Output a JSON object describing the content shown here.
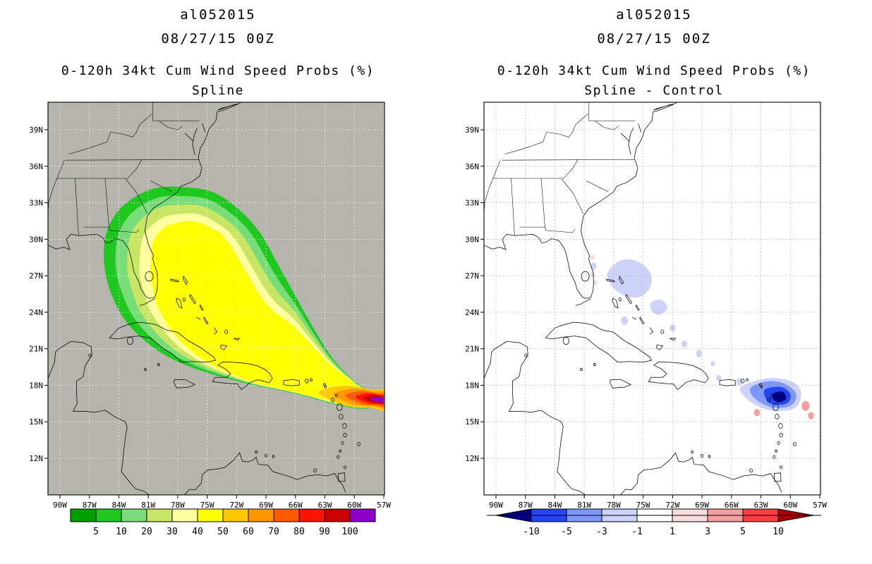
{
  "axes": {
    "lat_labels": [
      "39N",
      "36N",
      "33N",
      "30N",
      "27N",
      "24N",
      "21N",
      "18N",
      "15N",
      "12N"
    ],
    "lon_labels": [
      "90W",
      "87W",
      "84W",
      "81W",
      "78W",
      "75W",
      "72W",
      "69W",
      "66W",
      "63W",
      "60W",
      "57W"
    ]
  },
  "panels": [
    {
      "storm_id": "al052015",
      "init_time": "08/27/15 00Z",
      "title": "0-120h 34kt Cum Wind Speed Probs (%)",
      "subtitle": "Spline",
      "map_background": "#b5b5ad",
      "grid_color": "#ffffff",
      "coastline_color": "#000000",
      "colorbar": {
        "labels": [
          "5",
          "10",
          "20",
          "30",
          "40",
          "50",
          "60",
          "70",
          "80",
          "90",
          "100"
        ],
        "colors": [
          "#00a000",
          "#1ec81e",
          "#78dc78",
          "#c8e664",
          "#ffffa0",
          "#ffff00",
          "#ffc800",
          "#ff9600",
          "#ff5a00",
          "#ff1400",
          "#c80000",
          "#8c00c8"
        ]
      }
    },
    {
      "storm_id": "al052015",
      "init_time": "08/27/15 00Z",
      "title": "0-120h 34kt Cum Wind Speed Probs (%)",
      "subtitle": "Spline - Control",
      "map_background": "#ffffff",
      "grid_color": "#aaaaaa",
      "coastline_color": "#000000",
      "colorbar": {
        "labels": [
          "-10",
          "-5",
          "-3",
          "-1",
          "1",
          "3",
          "5",
          "10"
        ],
        "colors": [
          "#000082",
          "#2346f0",
          "#7d96fa",
          "#ccd2f8",
          "#ffffff",
          "#f8dcdc",
          "#f49e9e",
          "#f84040",
          "#aa0000"
        ]
      }
    }
  ],
  "chart_data": [
    {
      "type": "heatmap",
      "subtype": "geographic-contour",
      "title": "0-120h 34kt Cum Wind Speed Probs (%)",
      "subtitle": "Spline",
      "storm_id": "al052015",
      "init_time": "08/27/15 00Z",
      "x_ticks": [
        "90W",
        "87W",
        "84W",
        "81W",
        "78W",
        "75W",
        "72W",
        "69W",
        "66W",
        "63W",
        "60W",
        "57W"
      ],
      "y_ticks": [
        "39N",
        "36N",
        "33N",
        "30N",
        "27N",
        "24N",
        "21N",
        "18N",
        "15N",
        "12N"
      ],
      "contour_levels_percent": [
        5,
        10,
        20,
        30,
        40,
        50,
        60,
        70,
        80,
        90,
        100
      ],
      "palette": [
        "#00a000",
        "#1ec81e",
        "#78dc78",
        "#c8e664",
        "#ffffa0",
        "#ffff00",
        "#ffc800",
        "#ff9600",
        "#ff5a00",
        "#ff1400",
        "#c80000",
        "#8c00c8"
      ],
      "features": [
        "100% maximum (purple) near 58W-57W 17N at the Lesser Antilles, at the right frame edge",
        "high-probability tail (50-90%) extends WNW along ~17-18N from 57W to about 64W",
        "30-40% (yellow) core over the central and northwestern Bahamas",
        "outer 5% contour reaches Florida, the Georgia / South Carolina coast, eastern Cuba and Hispaniola",
        "background (below 5%) is gray"
      ],
      "legend_position": "bottom",
      "grid": true
    },
    {
      "type": "heatmap",
      "subtype": "geographic-difference",
      "title": "0-120h 34kt Cum Wind Speed Probs (%)",
      "subtitle": "Spline - Control",
      "storm_id": "al052015",
      "init_time": "08/27/15 00Z",
      "x_ticks": [
        "90W",
        "87W",
        "84W",
        "81W",
        "78W",
        "75W",
        "72W",
        "69W",
        "66W",
        "63W",
        "60W",
        "57W"
      ],
      "y_ticks": [
        "39N",
        "36N",
        "33N",
        "30N",
        "27N",
        "24N",
        "21N",
        "18N",
        "15N",
        "12N"
      ],
      "contour_levels_percent": [
        -10,
        -5,
        -3,
        -1,
        1,
        3,
        5,
        10
      ],
      "palette": [
        "#000082",
        "#2346f0",
        "#7d96fa",
        "#ccd2f8",
        "#ffffff",
        "#f8dcdc",
        "#f49e9e",
        "#f84040",
        "#aa0000"
      ],
      "features": [
        "negative differences of -5 to -10% and below (blue, dark core) clustered near 62W-60W 16.5N-18N",
        "weak negative patch (-1 to -3%, pale lavender) over the northwestern Bahamas ~78W-74W 24N-28N",
        "small positive spots (+1 to +3%, pink) near the Florida east coast and near 58W 16N",
        "white background elsewhere"
      ],
      "legend_position": "bottom",
      "grid": true
    }
  ]
}
